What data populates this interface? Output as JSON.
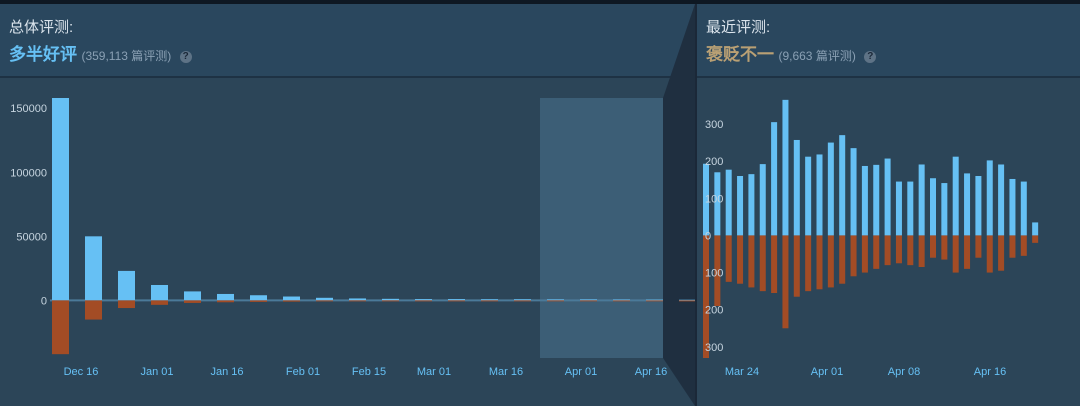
{
  "overall": {
    "title": "总体评测:",
    "summary": "多半好评",
    "summary_color": "#66c0f4",
    "count": "(359,113 篇评测)",
    "help_icon": "question-circle-icon"
  },
  "recent": {
    "title": "最近评测:",
    "summary": "褒贬不一",
    "summary_color": "#b9a074",
    "count": "(9,663 篇评测)",
    "help_icon": "question-circle-icon"
  },
  "colors": {
    "positive": "#66c0f4",
    "negative": "#a34c25",
    "axis_text": "#c6d4df",
    "date_text": "#66c0f4"
  },
  "chart_data": [
    {
      "type": "bar",
      "name": "overall-histogram",
      "y_ticks": [
        "150000",
        "100000",
        "50000",
        "0"
      ],
      "y_tick_values": [
        150000,
        100000,
        50000,
        0
      ],
      "x_ticks": [
        "Dec 16",
        "Jan 01",
        "Jan 16",
        "Feb 01",
        "Feb 15",
        "Mar 01",
        "Mar 16",
        "Apr 01",
        "Apr 16"
      ],
      "ylim": [
        -45000,
        158000
      ],
      "categories_count": 20,
      "positive": [
        158000,
        50000,
        23000,
        12000,
        7000,
        5000,
        4000,
        3000,
        2000,
        1500,
        1200,
        1000,
        1000,
        900,
        900,
        800,
        800,
        700,
        600,
        500
      ],
      "negative": [
        -42000,
        -15000,
        -6000,
        -3500,
        -2000,
        -1500,
        -1200,
        -1000,
        -800,
        -600,
        -500,
        -500,
        -400,
        -400,
        -400,
        -300,
        -300,
        -300,
        -200,
        -200
      ],
      "recent_range_start_index": 15
    },
    {
      "type": "bar",
      "name": "recent-histogram",
      "y_ticks": [
        "300",
        "200",
        "100",
        "0",
        "100",
        "200",
        "300"
      ],
      "y_tick_values": [
        300,
        200,
        100,
        0,
        -100,
        -200,
        -300
      ],
      "x_ticks": [
        "Mar 24",
        "Apr 01",
        "Apr 08",
        "Apr 16"
      ],
      "ylim": [
        -330,
        370
      ],
      "positive": [
        193,
        170,
        177,
        160,
        165,
        192,
        305,
        365,
        257,
        212,
        218,
        250,
        270,
        235,
        187,
        190,
        207,
        145,
        145,
        191,
        154,
        141,
        212,
        167,
        160,
        202,
        191,
        152,
        145,
        35
      ],
      "negative": [
        -330,
        -190,
        -125,
        -130,
        -140,
        -150,
        -155,
        -250,
        -165,
        -150,
        -145,
        -140,
        -130,
        -110,
        -100,
        -90,
        -80,
        -75,
        -80,
        -85,
        -60,
        -65,
        -100,
        -90,
        -60,
        -100,
        -95,
        -60,
        -55,
        -20
      ]
    }
  ]
}
